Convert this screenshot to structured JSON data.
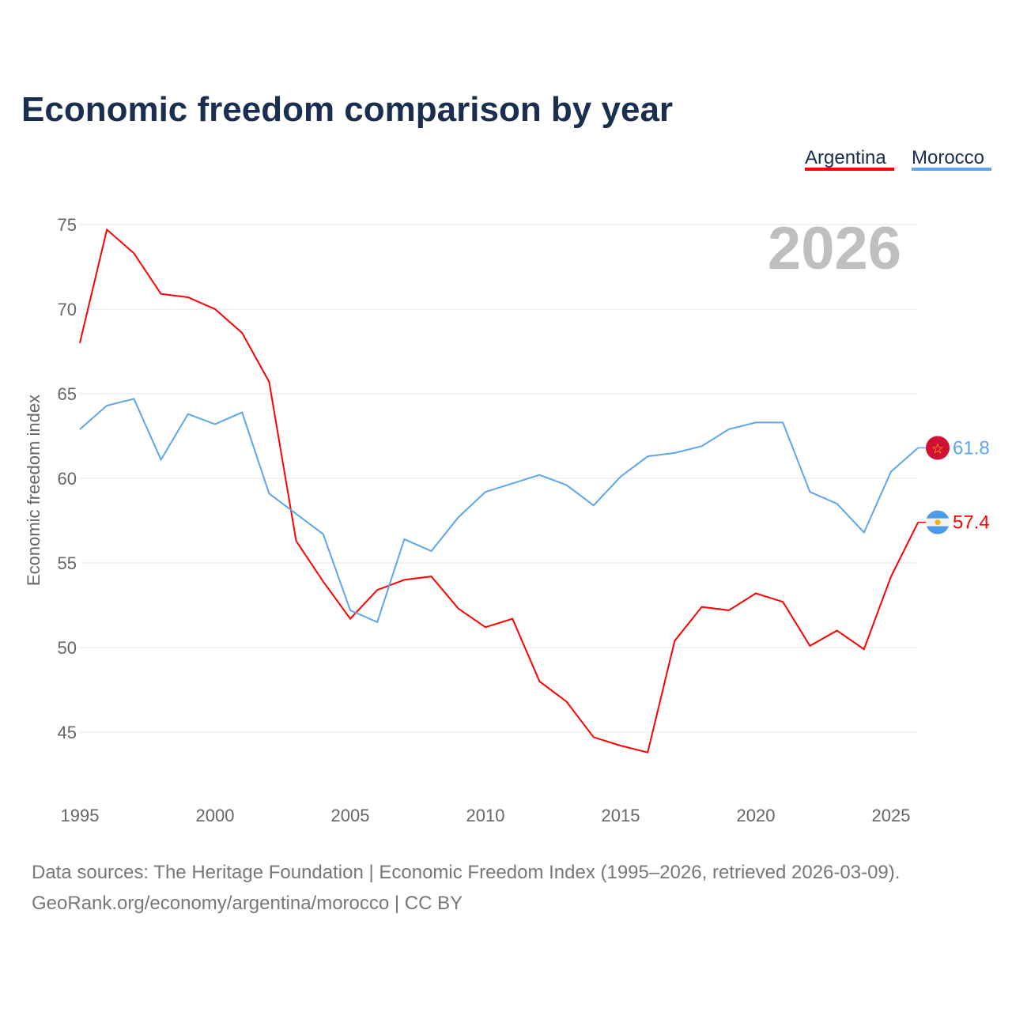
{
  "chart_data": {
    "type": "line",
    "title": "Economic freedom comparison by year",
    "ylabel": "Economic freedom index",
    "xlabel": "",
    "ylim": [
      41,
      76
    ],
    "xlim": [
      1995,
      2026
    ],
    "yticks": [
      45,
      50,
      55,
      60,
      65,
      70,
      75
    ],
    "xticks": [
      1995,
      2000,
      2005,
      2010,
      2015,
      2020,
      2025
    ],
    "year_label": "2026",
    "legend_position": "top-right",
    "x": [
      1995,
      1996,
      1997,
      1998,
      1999,
      2000,
      2001,
      2002,
      2003,
      2004,
      2005,
      2006,
      2007,
      2008,
      2009,
      2010,
      2011,
      2012,
      2013,
      2014,
      2015,
      2016,
      2017,
      2018,
      2019,
      2020,
      2021,
      2022,
      2023,
      2024,
      2025,
      2026
    ],
    "series": [
      {
        "name": "Argentina",
        "color": "#ff0000",
        "end_label": "57.4",
        "flag": "argentina-flag-icon",
        "values": [
          68.0,
          74.7,
          73.3,
          70.9,
          70.7,
          70.0,
          68.6,
          65.7,
          56.3,
          53.9,
          51.7,
          53.4,
          54.0,
          54.2,
          52.3,
          51.2,
          51.7,
          48.0,
          46.8,
          44.7,
          44.2,
          43.8,
          50.4,
          52.4,
          52.2,
          53.2,
          52.7,
          50.1,
          51.0,
          49.9,
          54.2,
          57.4
        ]
      },
      {
        "name": "Morocco",
        "color": "#5da5ec",
        "end_label": "61.8",
        "flag": "morocco-flag-icon",
        "values": [
          62.9,
          64.3,
          64.7,
          61.1,
          63.8,
          63.2,
          63.9,
          59.1,
          57.9,
          56.7,
          52.2,
          51.5,
          56.4,
          55.7,
          57.7,
          59.2,
          59.7,
          60.2,
          59.6,
          58.4,
          60.1,
          61.3,
          61.5,
          61.9,
          62.9,
          63.3,
          63.3,
          59.2,
          58.5,
          56.8,
          60.4,
          61.8
        ]
      }
    ]
  },
  "footer": {
    "line1": "Data sources: The Heritage Foundation | Economic Freedom Index (1995–2026, retrieved 2026-03-09).",
    "line2": "GeoRank.org/economy/argentina/morocco | CC BY"
  }
}
